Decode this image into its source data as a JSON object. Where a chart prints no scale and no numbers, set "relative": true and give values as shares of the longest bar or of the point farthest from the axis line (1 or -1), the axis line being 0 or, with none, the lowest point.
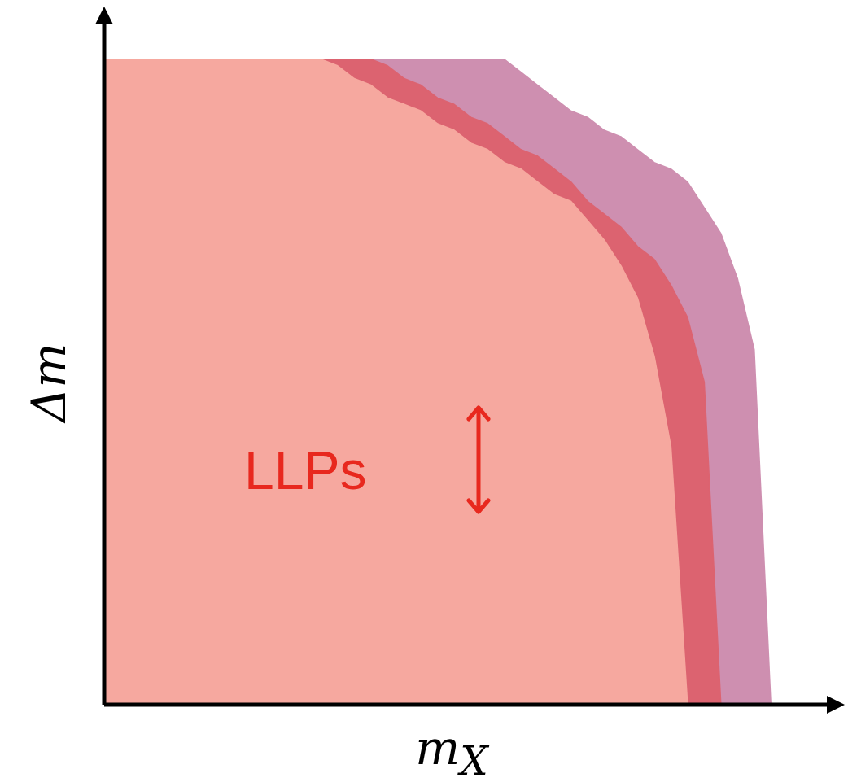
{
  "chart_data": {
    "type": "area",
    "relative": true,
    "xlabel": "m$_{X}$",
    "ylabel": "Δm",
    "annotations": [
      "LLPs"
    ],
    "categories": [
      null,
      null,
      null,
      null,
      null,
      null,
      null,
      null,
      null,
      null,
      null,
      null,
      null,
      null,
      null,
      null,
      null,
      null,
      null,
      null,
      null,
      null,
      null,
      null,
      null,
      null,
      null,
      null,
      null,
      null,
      null,
      null,
      null,
      null,
      null,
      null,
      null,
      null,
      null,
      null,
      null
    ],
    "series": [
      {
        "color": "#ce8fb0",
        "values": [
          1,
          1,
          1,
          1,
          1,
          1,
          1,
          1,
          1,
          1,
          1,
          1,
          1,
          1,
          1,
          1,
          1,
          1,
          1,
          1,
          1,
          1,
          1,
          1,
          1,
          0.98,
          0.96,
          0.94,
          0.92,
          0.91,
          0.89,
          0.88,
          0.86,
          0.84,
          0.83,
          0.81,
          0.77,
          0.73,
          0.66,
          0.55,
          0
        ]
      },
      {
        "color": "#dc6370",
        "values": [
          1,
          1,
          1,
          1,
          1,
          1,
          1,
          1,
          1,
          1,
          1,
          1,
          1,
          1,
          1,
          1,
          1,
          0.99,
          0.97,
          0.96,
          0.94,
          0.93,
          0.91,
          0.9,
          0.88,
          0.86,
          0.85,
          0.83,
          0.81,
          0.78,
          0.76,
          0.74,
          0.71,
          0.69,
          0.65,
          0.6,
          0.5,
          0,
          null,
          null,
          null
        ]
      },
      {
        "color": "#f6a89f",
        "values": [
          1,
          1,
          1,
          1,
          1,
          1,
          1,
          1,
          1,
          1,
          1,
          1,
          1,
          1,
          0.99,
          0.97,
          0.96,
          0.94,
          0.93,
          0.92,
          0.9,
          0.89,
          0.87,
          0.86,
          0.84,
          0.83,
          0.81,
          0.79,
          0.78,
          0.75,
          0.72,
          0.68,
          0.63,
          0.54,
          0.4,
          0,
          null,
          null,
          null,
          null,
          null
        ]
      }
    ]
  }
}
